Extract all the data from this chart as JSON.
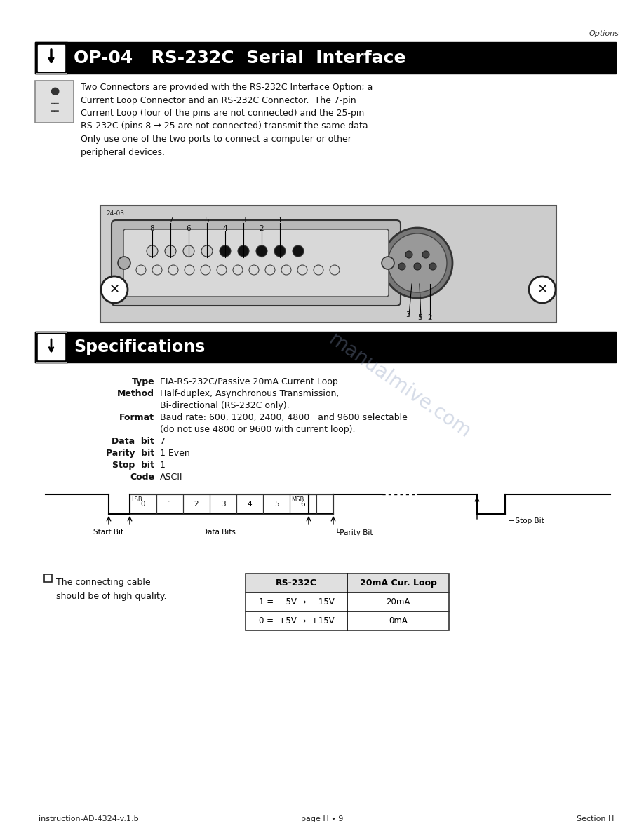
{
  "page_width": 9.18,
  "page_height": 11.88,
  "bg_color": "#ffffff",
  "header_text": "Options",
  "title_bar_color": "#000000",
  "title_bar_text": "OP-04   RS-232C  Serial  Interface",
  "title_bar_text_color": "#ffffff",
  "title_bar_fontsize": 18,
  "spec_bar_text": "Specifications",
  "body_text_intro": "Two Connectors are provided with the RS-232C Interface Option; a\nCurrent Loop Connector and an RS-232C Connector.  The 7-pin\nCurrent Loop (four of the pins are not connected) and the 25-pin\nRS-232C (pins 8 → 25 are not connected) transmit the same data.\nOnly use one of the two ports to connect a computer or other\nperipheral devices.",
  "spec_type": "EIA-RS-232C/Passive 20mA Current Loop.",
  "spec_method1": "Half-duplex, Asynchronous Transmission,",
  "spec_method2": "Bi-directional (RS-232C only).",
  "spec_format1": "Baud rate: 600, 1200, 2400, 4800   and 9600 selectable",
  "spec_format2": "(do not use 4800 or 9600 with current loop).",
  "spec_databit": "7",
  "spec_paritybit": "1 Even",
  "spec_stopbit": "1",
  "spec_code": "ASCII",
  "cable_note": "The connecting cable\nshould be of high quality.",
  "table_header1": "RS-232C",
  "table_header2": "20mA Cur. Loop",
  "table_row1_col1": "1 =  −5V →  −15V",
  "table_row1_col2": "20mA",
  "table_row2_col1": "0 =  +5V →  +15V",
  "table_row2_col2": "0mA",
  "footer_left": "instruction-AD-4324-v.1.b",
  "footer_center": "page H • 9",
  "footer_right": "Section H",
  "watermark_text": "manualmive.com",
  "watermark_color": "#8899bb",
  "watermark_alpha": 0.35
}
